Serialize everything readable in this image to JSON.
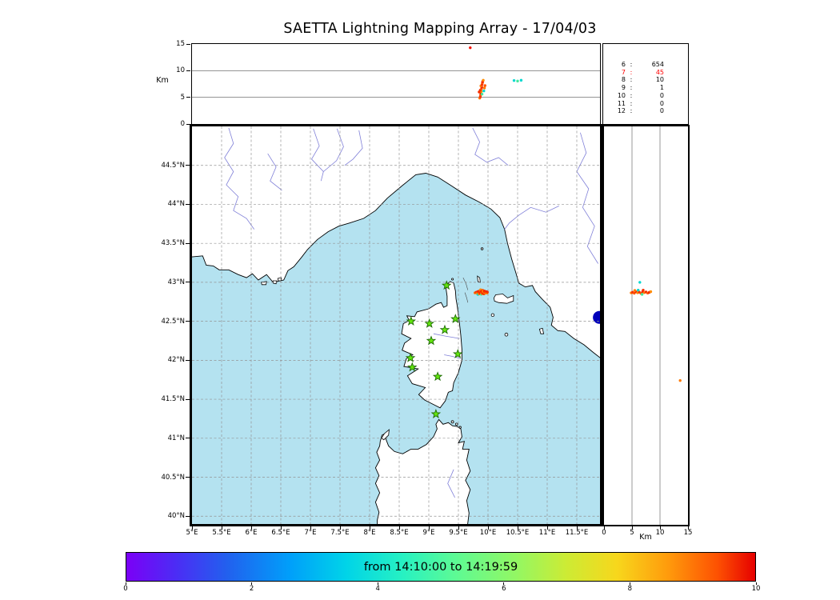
{
  "title": "SAETTA Lightning Mapping Array - 17/04/03",
  "colors": {
    "sea": "#b4e2f0",
    "land": "#ffffff",
    "coastline": "#000000",
    "river": "#8080d8",
    "grid": "#949494",
    "lake": "#0000bb",
    "station_fill": "#63e60e",
    "station_edge": "#1f6b06",
    "highlight_count": "#ff0000"
  },
  "chart_data": [
    {
      "type": "scatter",
      "name": "altitude-vs-longitude",
      "title": "",
      "xlabel": "",
      "ylabel": "Km",
      "xlim": [
        5.0,
        11.89
      ],
      "ylim": [
        0,
        15
      ],
      "grid_y": [
        5,
        10
      ],
      "yticks": [
        {
          "v": 0,
          "label": "0"
        },
        {
          "v": 5,
          "label": "5"
        },
        {
          "v": 10,
          "label": "10"
        },
        {
          "v": 15,
          "label": "15"
        }
      ],
      "points": [
        [
          9.86,
          4.85,
          "#ff7a00"
        ],
        [
          9.87,
          5.1,
          "#f53000"
        ],
        [
          9.875,
          5.45,
          "#ff5500"
        ],
        [
          9.88,
          5.8,
          "#f02000"
        ],
        [
          9.885,
          6.1,
          "#ff8c00"
        ],
        [
          9.87,
          6.35,
          "#f53000"
        ],
        [
          9.89,
          6.6,
          "#ff5500"
        ],
        [
          9.895,
          6.9,
          "#f02000"
        ],
        [
          9.88,
          7.15,
          "#ff7a00"
        ],
        [
          9.9,
          7.4,
          "#f53000"
        ],
        [
          9.905,
          7.7,
          "#ff5500"
        ],
        [
          9.91,
          7.95,
          "#f02000"
        ],
        [
          9.92,
          8.2,
          "#ff8c00"
        ],
        [
          9.9,
          5.6,
          "#46e89c"
        ],
        [
          9.93,
          6.2,
          "#00d8cf"
        ],
        [
          9.94,
          6.75,
          "#ff7a00"
        ],
        [
          9.85,
          6.0,
          "#f53000"
        ],
        [
          9.95,
          7.2,
          "#ff5500"
        ],
        [
          10.44,
          8.15,
          "#00d8cf"
        ],
        [
          10.5,
          8.05,
          "#46e89c"
        ],
        [
          10.56,
          8.2,
          "#00d8cf"
        ],
        [
          9.7,
          14.3,
          "#f50f00"
        ]
      ]
    },
    {
      "type": "scatter",
      "name": "map-lightning-sources",
      "title": "",
      "xlabel": "",
      "ylabel": "",
      "xlim": [
        5.0,
        11.89
      ],
      "ylim": [
        39.9,
        45.0
      ],
      "grid": "dashed 0.5 degree",
      "xticks": [
        {
          "v": 5,
          "label": "5°E"
        },
        {
          "v": 5.5,
          "label": "5.5°E"
        },
        {
          "v": 6,
          "label": "6°E"
        },
        {
          "v": 6.5,
          "label": "6.5°E"
        },
        {
          "v": 7,
          "label": "7°E"
        },
        {
          "v": 7.5,
          "label": "7.5°E"
        },
        {
          "v": 8,
          "label": "8°E"
        },
        {
          "v": 8.5,
          "label": "8.5°E"
        },
        {
          "v": 9,
          "label": "9°E"
        },
        {
          "v": 9.5,
          "label": "9.5°E"
        },
        {
          "v": 10,
          "label": "10°E"
        },
        {
          "v": 10.5,
          "label": "10.5°E"
        },
        {
          "v": 11,
          "label": "11°E"
        },
        {
          "v": 11.5,
          "label": "11.5°E"
        }
      ],
      "yticks": [
        {
          "v": 40,
          "label": "40°N"
        },
        {
          "v": 40.5,
          "label": "40.5°N"
        },
        {
          "v": 41,
          "label": "41°N"
        },
        {
          "v": 41.5,
          "label": "41.5°N"
        },
        {
          "v": 42,
          "label": "42°N"
        },
        {
          "v": 42.5,
          "label": "42.5°N"
        },
        {
          "v": 43,
          "label": "43°N"
        },
        {
          "v": 43.5,
          "label": "43.5°N"
        },
        {
          "v": 44,
          "label": "44°N"
        },
        {
          "v": 44.5,
          "label": "44.5°N"
        }
      ],
      "stations": [
        [
          9.3,
          42.96
        ],
        [
          8.7,
          42.5
        ],
        [
          9.01,
          42.47
        ],
        [
          9.45,
          42.53
        ],
        [
          9.27,
          42.39
        ],
        [
          9.04,
          42.25
        ],
        [
          8.69,
          42.03
        ],
        [
          9.49,
          42.08
        ],
        [
          8.72,
          41.91
        ],
        [
          9.15,
          41.79
        ],
        [
          9.12,
          41.31
        ]
      ],
      "points": [
        [
          9.78,
          42.865,
          "#ff6a00"
        ],
        [
          9.8,
          42.872,
          "#f53000"
        ],
        [
          9.815,
          42.858,
          "#ff8c00"
        ],
        [
          9.825,
          42.88,
          "#f53000"
        ],
        [
          9.83,
          42.845,
          "#00d8cf"
        ],
        [
          9.84,
          42.868,
          "#ff5500"
        ],
        [
          9.845,
          42.885,
          "#f02000"
        ],
        [
          9.85,
          42.852,
          "#ff7a00"
        ],
        [
          9.86,
          42.874,
          "#f53000"
        ],
        [
          9.865,
          42.892,
          "#ff5500"
        ],
        [
          9.87,
          42.86,
          "#f02000"
        ],
        [
          9.875,
          42.905,
          "#ff8c00"
        ],
        [
          9.88,
          42.878,
          "#f53000"
        ],
        [
          9.885,
          42.846,
          "#46e89c"
        ],
        [
          9.89,
          42.866,
          "#ff5500"
        ],
        [
          9.895,
          42.888,
          "#f02000"
        ],
        [
          9.9,
          42.855,
          "#ff7a00"
        ],
        [
          9.905,
          42.872,
          "#f53000"
        ],
        [
          9.91,
          42.898,
          "#ff5500"
        ],
        [
          9.915,
          42.862,
          "#f02000"
        ],
        [
          9.92,
          42.88,
          "#ff8c00"
        ],
        [
          9.93,
          42.852,
          "#f53000"
        ],
        [
          9.935,
          42.87,
          "#ff5500"
        ],
        [
          9.94,
          42.888,
          "#f02000"
        ],
        [
          9.95,
          42.86,
          "#ff7a00"
        ],
        [
          9.955,
          42.876,
          "#f53000"
        ],
        [
          9.965,
          42.868,
          "#ff5500"
        ],
        [
          9.975,
          42.88,
          "#f02000"
        ],
        [
          9.985,
          42.862,
          "#ff8c00"
        ],
        [
          9.99,
          42.874,
          "#f53000"
        ]
      ]
    },
    {
      "type": "scatter",
      "name": "altitude-vs-latitude",
      "title": "",
      "xlabel": "Km",
      "ylabel": "",
      "xlim": [
        0,
        15
      ],
      "ylim": [
        39.9,
        45.0
      ],
      "grid_x": [
        5,
        10
      ],
      "xticks": [
        {
          "v": 0,
          "label": "0"
        },
        {
          "v": 5,
          "label": "5"
        },
        {
          "v": 10,
          "label": "10"
        },
        {
          "v": 15,
          "label": "15"
        }
      ],
      "points": [
        [
          4.85,
          42.865,
          "#ff7a00"
        ],
        [
          5.1,
          42.872,
          "#f53000"
        ],
        [
          5.4,
          42.86,
          "#ff5500"
        ],
        [
          5.7,
          42.878,
          "#f02000"
        ],
        [
          6.0,
          42.866,
          "#ff8c00"
        ],
        [
          6.3,
          42.874,
          "#f53000"
        ],
        [
          6.6,
          42.858,
          "#ff5500"
        ],
        [
          6.9,
          42.88,
          "#f02000"
        ],
        [
          7.2,
          42.868,
          "#ff7a00"
        ],
        [
          7.5,
          42.876,
          "#f53000"
        ],
        [
          7.8,
          42.862,
          "#ff5500"
        ],
        [
          8.1,
          42.872,
          "#f02000"
        ],
        [
          8.35,
          42.88,
          "#ff8c00"
        ],
        [
          6.1,
          42.9,
          "#00d8cf"
        ],
        [
          6.8,
          42.845,
          "#46e89c"
        ],
        [
          5.5,
          42.895,
          "#ff7a00"
        ],
        [
          7.0,
          42.9,
          "#f53000"
        ],
        [
          13.6,
          41.74,
          "#ff7a00"
        ],
        [
          6.4,
          43.0,
          "#00d8cf"
        ]
      ]
    },
    {
      "type": "table",
      "name": "sources-by-min-station-count",
      "separator": ":",
      "highlight_index": 1,
      "rows": [
        [
          "6",
          "654"
        ],
        [
          "7",
          "45"
        ],
        [
          "8",
          "10"
        ],
        [
          "9",
          "1"
        ],
        [
          "10",
          "0"
        ],
        [
          "11",
          "0"
        ],
        [
          "12",
          "0"
        ]
      ]
    },
    {
      "type": "colorbar",
      "name": "time-colorbar",
      "label": "from 14:10:00 to 14:19:59",
      "time_start": "14:10:00",
      "time_end": "14:19:59",
      "range": [
        0,
        10
      ],
      "ticks": [
        {
          "v": 0,
          "label": "0"
        },
        {
          "v": 2,
          "label": "2"
        },
        {
          "v": 4,
          "label": "4"
        },
        {
          "v": 6,
          "label": "6"
        },
        {
          "v": 8,
          "label": "8"
        },
        {
          "v": 10,
          "label": "10"
        }
      ],
      "gradient": [
        {
          "c": "#7b00f6",
          "p": 0
        },
        {
          "c": "#4b2df5",
          "p": 8
        },
        {
          "c": "#2260ee",
          "p": 16
        },
        {
          "c": "#009ffa",
          "p": 26
        },
        {
          "c": "#00d4e8",
          "p": 35
        },
        {
          "c": "#27f1c2",
          "p": 44
        },
        {
          "c": "#5bfa96",
          "p": 52
        },
        {
          "c": "#93f763",
          "p": 62
        },
        {
          "c": "#cdeb34",
          "p": 70
        },
        {
          "c": "#f7d71c",
          "p": 78
        },
        {
          "c": "#ff9c0c",
          "p": 86
        },
        {
          "c": "#fd5102",
          "p": 94
        },
        {
          "c": "#e60000",
          "p": 100
        }
      ]
    }
  ]
}
